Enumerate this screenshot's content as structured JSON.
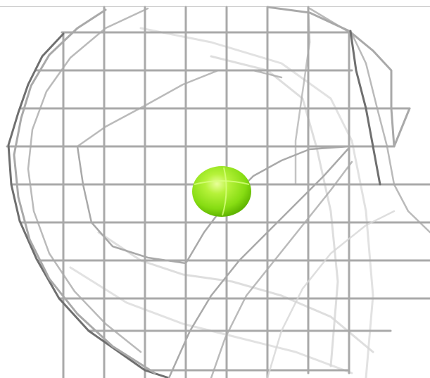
{
  "scene": {
    "model": "wireframe-head",
    "marker": "sphere",
    "colors": {
      "background": "#ffffff",
      "wire_dark": "#6f6f6f",
      "wire_mid": "#a9a9a9",
      "wire_light": "#d6d6d6",
      "marker": "#8fe21a",
      "marker_highlight": "#e4ff8a",
      "top_rule": "#c8c8c8"
    }
  }
}
